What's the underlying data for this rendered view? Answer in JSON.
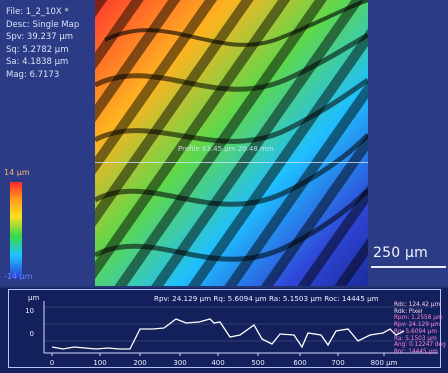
{
  "info": {
    "file": "File: 1_2_10X *",
    "desc": "Desc: Single Map",
    "spv": "Spv: 39.237 µm",
    "sq": "Sq: 5.2782 µm",
    "sa": "Sa: 4.1838 µm",
    "mag": "Mag: 6.7173"
  },
  "color_scale": {
    "max_label": "14 µm",
    "min_label": "-14 µm"
  },
  "probe": {
    "label": "Profile 63.45 µm 20.48 mm"
  },
  "scale_bar": {
    "label": "250 µm"
  },
  "profile": {
    "units_label": "µm",
    "header": "Rpv: 24.129 µm  Rq: 5.6094 µm  Ra: 5.1503 µm  Roc: 14445 µm",
    "y_ticks": [
      "10",
      "0"
    ],
    "x_ticks": [
      "0",
      "100",
      "200",
      "300",
      "400",
      "500",
      "600",
      "700",
      "800 µm"
    ],
    "right_stats": [
      "Rdc: 124.42 µm",
      "Rdk: Pixel",
      "Rpm: 1.2558 µm",
      "Rpv: 24.129 µm",
      "Rq: 5.6094 µm",
      "Ra: 5.1503 µm",
      "Ang: 0.12247 deg",
      "Roc: 14445 µm"
    ]
  }
}
